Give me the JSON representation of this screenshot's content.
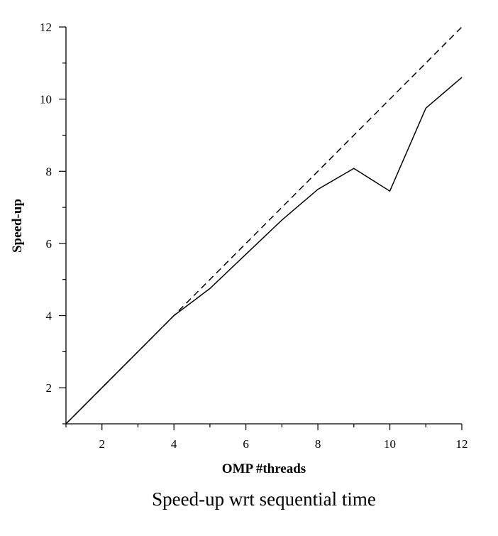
{
  "chart_data": {
    "type": "line",
    "title": "",
    "caption": "Speed-up wrt sequential time",
    "xlabel": "OMP #threads",
    "ylabel": "Speed-up",
    "xlim": [
      1,
      12
    ],
    "ylim": [
      1,
      12
    ],
    "xticks": [
      2,
      4,
      6,
      8,
      10,
      12
    ],
    "yticks": [
      2,
      4,
      6,
      8,
      10,
      12
    ],
    "grid": false,
    "series": [
      {
        "style": "solid",
        "x": [
          1,
          2,
          3,
          4,
          5,
          6,
          7,
          8,
          9,
          10,
          11,
          12
        ],
        "y": [
          1.0,
          2.0,
          3.0,
          4.0,
          4.75,
          5.7,
          6.65,
          7.5,
          8.08,
          7.45,
          9.75,
          10.6
        ]
      },
      {
        "style": "dashed",
        "x": [
          1,
          12
        ],
        "y": [
          1,
          12
        ]
      }
    ],
    "colors": {
      "line": "#000000",
      "axis": "#000000"
    }
  }
}
